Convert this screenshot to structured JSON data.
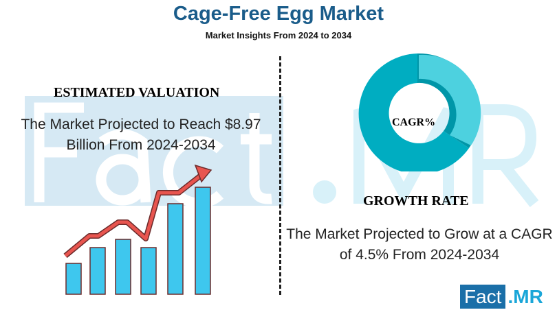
{
  "header": {
    "title": "Cage-Free Egg Market",
    "subtitle": "Market Insights From 2024 to 2034"
  },
  "watermark": {
    "left": "Fact",
    "right": ".MR"
  },
  "valuation": {
    "heading": "ESTIMATED VALUATION",
    "text": "The Market Projected to Reach $8.97 Billion From 2024-2034"
  },
  "growth": {
    "heading": "GROWTH RATE",
    "text": "The Market Projected to Grow at a CAGR of 4.5% From 2024-2034",
    "donut_label": "CAGR%"
  },
  "logo": {
    "part1": "Fact",
    "part2": ".MR"
  },
  "colors": {
    "title": "#1a5c8a",
    "donut_dark": "#00adc1",
    "donut_light": "#4dd1df",
    "bar": "#3ec7ee",
    "arrow": "#e8554f"
  }
}
